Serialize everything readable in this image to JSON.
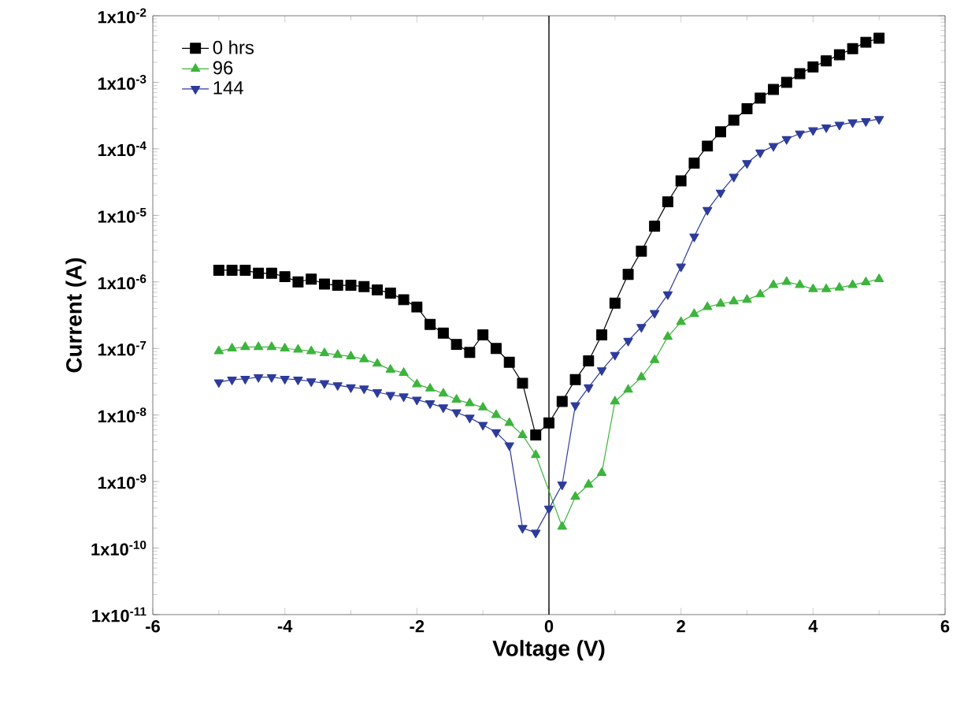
{
  "chart_data": {
    "type": "line",
    "xlabel": "Voltage (V)",
    "ylabel": "Current (A)",
    "log": "y",
    "xlim": [
      -6,
      6
    ],
    "xticks": [
      -6,
      -4,
      -2,
      0,
      2,
      4,
      6
    ],
    "ylim": [
      1e-11,
      0.01
    ],
    "yticks": [
      {
        "value": 1e-11,
        "label": "1x10$^{-11}$"
      },
      {
        "value": 1e-10,
        "label": "1x10$^{-10}$"
      },
      {
        "value": 1e-09,
        "label": "1x10$^{-9}$"
      },
      {
        "value": 1e-08,
        "label": "1x10$^{-8}$"
      },
      {
        "value": 1e-07,
        "label": "1x10$^{-7}$"
      },
      {
        "value": 1e-06,
        "label": "1x10$^{-6}$"
      },
      {
        "value": 1e-05,
        "label": "1x10$^{-5}$"
      },
      {
        "value": 0.0001,
        "label": "1x10$^{-4}$"
      },
      {
        "value": 0.001,
        "label": "1x10$^{-3}$"
      },
      {
        "value": 0.01,
        "label": "1x10$^{-2}$"
      }
    ],
    "legend": "top left",
    "grid": false,
    "line_style": "solid",
    "ref_lines": [
      {
        "axis": "x",
        "value": 0,
        "color": "#000000"
      }
    ],
    "series": [
      {
        "name": "0 hrs",
        "color": "#000000",
        "marker": "square",
        "x": [
          -5,
          -4.8,
          -4.6,
          -4.4,
          -4.2,
          -4,
          -3.8,
          -3.6,
          -3.4,
          -3.2,
          -3,
          -2.8,
          -2.6,
          -2.4,
          -2.2,
          -2,
          -1.8,
          -1.6,
          -1.4,
          -1.2,
          -1,
          -0.8,
          -0.6,
          -0.4,
          -0.2,
          0,
          0.2,
          0.4,
          0.6,
          0.8,
          1,
          1.2,
          1.4,
          1.6,
          1.8,
          2,
          2.2,
          2.4,
          2.6,
          2.8,
          3,
          3.2,
          3.4,
          3.6,
          3.8,
          4,
          4.2,
          4.4,
          4.6,
          4.8,
          5
        ],
        "values": [
          1.5e-06,
          1.5e-06,
          1.5e-06,
          1.35e-06,
          1.35e-06,
          1.2e-06,
          1e-06,
          1.1e-06,
          9.3e-07,
          8.9e-07,
          8.9e-07,
          8.5e-07,
          7.6e-07,
          6.8e-07,
          5.4e-07,
          4.2e-07,
          2.3e-07,
          1.7e-07,
          1.15e-07,
          8.7e-08,
          1.6e-07,
          1e-07,
          6.2e-08,
          3e-08,
          5e-09,
          7.6e-09,
          1.6e-08,
          3.4e-08,
          6.5e-08,
          1.6e-07,
          4.8e-07,
          1.3e-06,
          2.9e-06,
          6.9e-06,
          1.6e-05,
          3.3e-05,
          6.1e-05,
          0.00011,
          0.00018,
          0.00027,
          0.0004,
          0.00058,
          0.00078,
          0.001,
          0.00135,
          0.0017,
          0.0021,
          0.0026,
          0.0032,
          0.004,
          0.0046
        ]
      },
      {
        "name": "96",
        "color": "#3db43d",
        "marker": "triangle",
        "x": [
          -5,
          -4.8,
          -4.6,
          -4.4,
          -4.2,
          -4,
          -3.8,
          -3.6,
          -3.4,
          -3.2,
          -3,
          -2.8,
          -2.6,
          -2.4,
          -2.2,
          -2,
          -1.8,
          -1.6,
          -1.4,
          -1.2,
          -1,
          -0.8,
          -0.6,
          -0.4,
          -0.2,
          0.2,
          0.4,
          0.6,
          0.8,
          1,
          1.2,
          1.4,
          1.6,
          1.8,
          2,
          2.2,
          2.4,
          2.6,
          2.8,
          3,
          3.2,
          3.4,
          3.6,
          3.8,
          4,
          4.2,
          4.4,
          4.6,
          4.8,
          5
        ],
        "values": [
          9.1e-08,
          1e-07,
          1.05e-07,
          1.05e-07,
          1.05e-07,
          1e-07,
          9.6e-08,
          9.1e-08,
          8.5e-08,
          8e-08,
          7.6e-08,
          6.9e-08,
          5.9e-08,
          4.8e-08,
          4.3e-08,
          2.9e-08,
          2.5e-08,
          2.1e-08,
          1.7e-08,
          1.5e-08,
          1.3e-08,
          1e-08,
          7.6e-09,
          5e-09,
          2.5e-09,
          2.1e-10,
          5.9e-10,
          9e-10,
          1.35e-09,
          1.6e-08,
          2.4e-08,
          3.7e-08,
          6.7e-08,
          1.5e-07,
          2.5e-07,
          3.3e-07,
          4.2e-07,
          4.7e-07,
          5.1e-07,
          5.4e-07,
          6.5e-07,
          9e-07,
          1e-06,
          9e-07,
          7.8e-07,
          7.8e-07,
          8.2e-07,
          9e-07,
          9.9e-07,
          1.1e-06
        ]
      },
      {
        "name": "144",
        "color": "#2d3b9b",
        "marker": "triangle-down",
        "x": [
          -5,
          -4.8,
          -4.6,
          -4.4,
          -4.2,
          -4,
          -3.8,
          -3.6,
          -3.4,
          -3.2,
          -3,
          -2.8,
          -2.6,
          -2.4,
          -2.2,
          -2,
          -1.8,
          -1.6,
          -1.4,
          -1.2,
          -1,
          -0.8,
          -0.6,
          -0.4,
          -0.2,
          0,
          0.2,
          0.4,
          0.6,
          0.8,
          1,
          1.2,
          1.4,
          1.6,
          1.8,
          2,
          2.2,
          2.4,
          2.6,
          2.8,
          3,
          3.2,
          3.4,
          3.6,
          3.8,
          4,
          4.2,
          4.4,
          4.6,
          4.8,
          5
        ],
        "values": [
          3.1e-08,
          3.4e-08,
          3.5e-08,
          3.7e-08,
          3.7e-08,
          3.5e-08,
          3.4e-08,
          3.2e-08,
          3e-08,
          2.8e-08,
          2.6e-08,
          2.5e-08,
          2.2e-08,
          2e-08,
          1.9e-08,
          1.7e-08,
          1.5e-08,
          1.3e-08,
          1.1e-08,
          9.1e-09,
          7.1e-09,
          5.5e-09,
          3.5e-09,
          2e-10,
          1.7e-10,
          3.9e-10,
          9e-10,
          1.4e-08,
          2.6e-08,
          4.7e-08,
          8e-08,
          1.3e-07,
          2.1e-07,
          3.4e-07,
          6.5e-07,
          1.7e-06,
          4.8e-06,
          1.2e-05,
          2.2e-05,
          3.8e-05,
          6.1e-05,
          8.8e-05,
          0.00011,
          0.00014,
          0.00017,
          0.00019,
          0.00021,
          0.00023,
          0.00025,
          0.00026,
          0.00028
        ]
      }
    ]
  }
}
